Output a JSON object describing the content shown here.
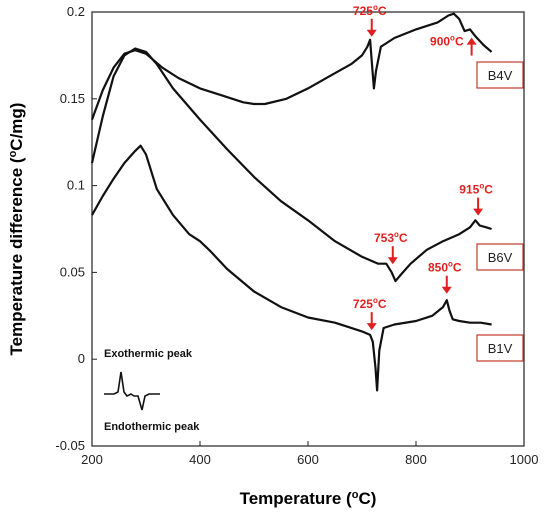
{
  "chart_data": {
    "type": "line",
    "xlabel": "Temperature (",
    "xlabel_sup": "o",
    "xlabel_end": "C)",
    "ylabel": "Temperature difference (",
    "ylabel_sup": "o",
    "ylabel_end": "C/mg)",
    "xlim": [
      200,
      1000
    ],
    "ylim": [
      -0.05,
      0.2
    ],
    "xticks": [
      "200",
      "400",
      "600",
      "800",
      "1000"
    ],
    "yticks": [
      "-0.05",
      "0",
      "0.05",
      "0.1",
      "0.15",
      "0.2"
    ],
    "xtick_values": [
      200,
      400,
      600,
      800,
      1000
    ],
    "ytick_values": [
      -0.05,
      0,
      0.05,
      0.1,
      0.15,
      0.2
    ],
    "grid": false,
    "line_color": "#111111",
    "annotation_color": "#e02020",
    "series": [
      {
        "name": "B4V",
        "points": [
          [
            200,
            0.138
          ],
          [
            220,
            0.155
          ],
          [
            240,
            0.168
          ],
          [
            260,
            0.176
          ],
          [
            280,
            0.178
          ],
          [
            300,
            0.176
          ],
          [
            330,
            0.168
          ],
          [
            360,
            0.162
          ],
          [
            400,
            0.156
          ],
          [
            440,
            0.152
          ],
          [
            480,
            0.148
          ],
          [
            500,
            0.147
          ],
          [
            520,
            0.147
          ],
          [
            560,
            0.15
          ],
          [
            600,
            0.156
          ],
          [
            640,
            0.163
          ],
          [
            680,
            0.17
          ],
          [
            700,
            0.175
          ],
          [
            710,
            0.18
          ],
          [
            715,
            0.184
          ],
          [
            718,
            0.172
          ],
          [
            722,
            0.156
          ],
          [
            726,
            0.166
          ],
          [
            735,
            0.18
          ],
          [
            760,
            0.185
          ],
          [
            800,
            0.19
          ],
          [
            840,
            0.194
          ],
          [
            860,
            0.198
          ],
          [
            870,
            0.199
          ],
          [
            880,
            0.196
          ],
          [
            890,
            0.189
          ],
          [
            900,
            0.19
          ],
          [
            910,
            0.186
          ],
          [
            925,
            0.181
          ],
          [
            940,
            0.177
          ]
        ]
      },
      {
        "name": "B6V",
        "points": [
          [
            200,
            0.113
          ],
          [
            220,
            0.14
          ],
          [
            240,
            0.163
          ],
          [
            260,
            0.175
          ],
          [
            280,
            0.179
          ],
          [
            300,
            0.177
          ],
          [
            320,
            0.17
          ],
          [
            350,
            0.156
          ],
          [
            400,
            0.138
          ],
          [
            450,
            0.121
          ],
          [
            500,
            0.105
          ],
          [
            550,
            0.091
          ],
          [
            600,
            0.08
          ],
          [
            650,
            0.068
          ],
          [
            700,
            0.059
          ],
          [
            730,
            0.055
          ],
          [
            745,
            0.055
          ],
          [
            755,
            0.05
          ],
          [
            762,
            0.045
          ],
          [
            770,
            0.048
          ],
          [
            790,
            0.055
          ],
          [
            820,
            0.063
          ],
          [
            850,
            0.068
          ],
          [
            880,
            0.072
          ],
          [
            900,
            0.076
          ],
          [
            910,
            0.08
          ],
          [
            918,
            0.077
          ],
          [
            930,
            0.076
          ],
          [
            940,
            0.075
          ]
        ]
      },
      {
        "name": "B1V",
        "points": [
          [
            200,
            0.083
          ],
          [
            220,
            0.094
          ],
          [
            240,
            0.104
          ],
          [
            260,
            0.113
          ],
          [
            280,
            0.12
          ],
          [
            290,
            0.123
          ],
          [
            300,
            0.118
          ],
          [
            320,
            0.098
          ],
          [
            350,
            0.083
          ],
          [
            380,
            0.072
          ],
          [
            400,
            0.068
          ],
          [
            420,
            0.062
          ],
          [
            450,
            0.052
          ],
          [
            500,
            0.039
          ],
          [
            550,
            0.03
          ],
          [
            600,
            0.024
          ],
          [
            650,
            0.021
          ],
          [
            700,
            0.016
          ],
          [
            715,
            0.014
          ],
          [
            720,
            0.01
          ],
          [
            725,
            -0.005
          ],
          [
            728,
            -0.018
          ],
          [
            732,
            0.005
          ],
          [
            740,
            0.018
          ],
          [
            760,
            0.02
          ],
          [
            800,
            0.022
          ],
          [
            830,
            0.025
          ],
          [
            850,
            0.03
          ],
          [
            857,
            0.034
          ],
          [
            862,
            0.028
          ],
          [
            868,
            0.023
          ],
          [
            880,
            0.022
          ],
          [
            900,
            0.021
          ],
          [
            920,
            0.021
          ],
          [
            940,
            0.02
          ]
        ]
      }
    ],
    "annotations": [
      {
        "label": "725",
        "unit_sup": "o",
        "unit": "C",
        "x": 718,
        "y": 0.184,
        "dir": "down"
      },
      {
        "label": "900",
        "unit_sup": "o",
        "unit": "C",
        "x": 903,
        "y": 0.187,
        "dir": "up"
      },
      {
        "label": "753",
        "unit_sup": "o",
        "unit": "C",
        "x": 757,
        "y": 0.053,
        "dir": "down"
      },
      {
        "label": "915",
        "unit_sup": "o",
        "unit": "C",
        "x": 915,
        "y": 0.081,
        "dir": "down"
      },
      {
        "label": "725",
        "unit_sup": "o",
        "unit": "C",
        "x": 718,
        "y": 0.015,
        "dir": "down"
      },
      {
        "label": "850",
        "unit_sup": "o",
        "unit": "C",
        "x": 857,
        "y": 0.036,
        "dir": "down"
      }
    ],
    "series_labels": [
      "B4V",
      "B6V",
      "B1V"
    ],
    "inset": {
      "exo_label": "Exothermic peak",
      "endo_label": "Endothermic peak"
    }
  }
}
